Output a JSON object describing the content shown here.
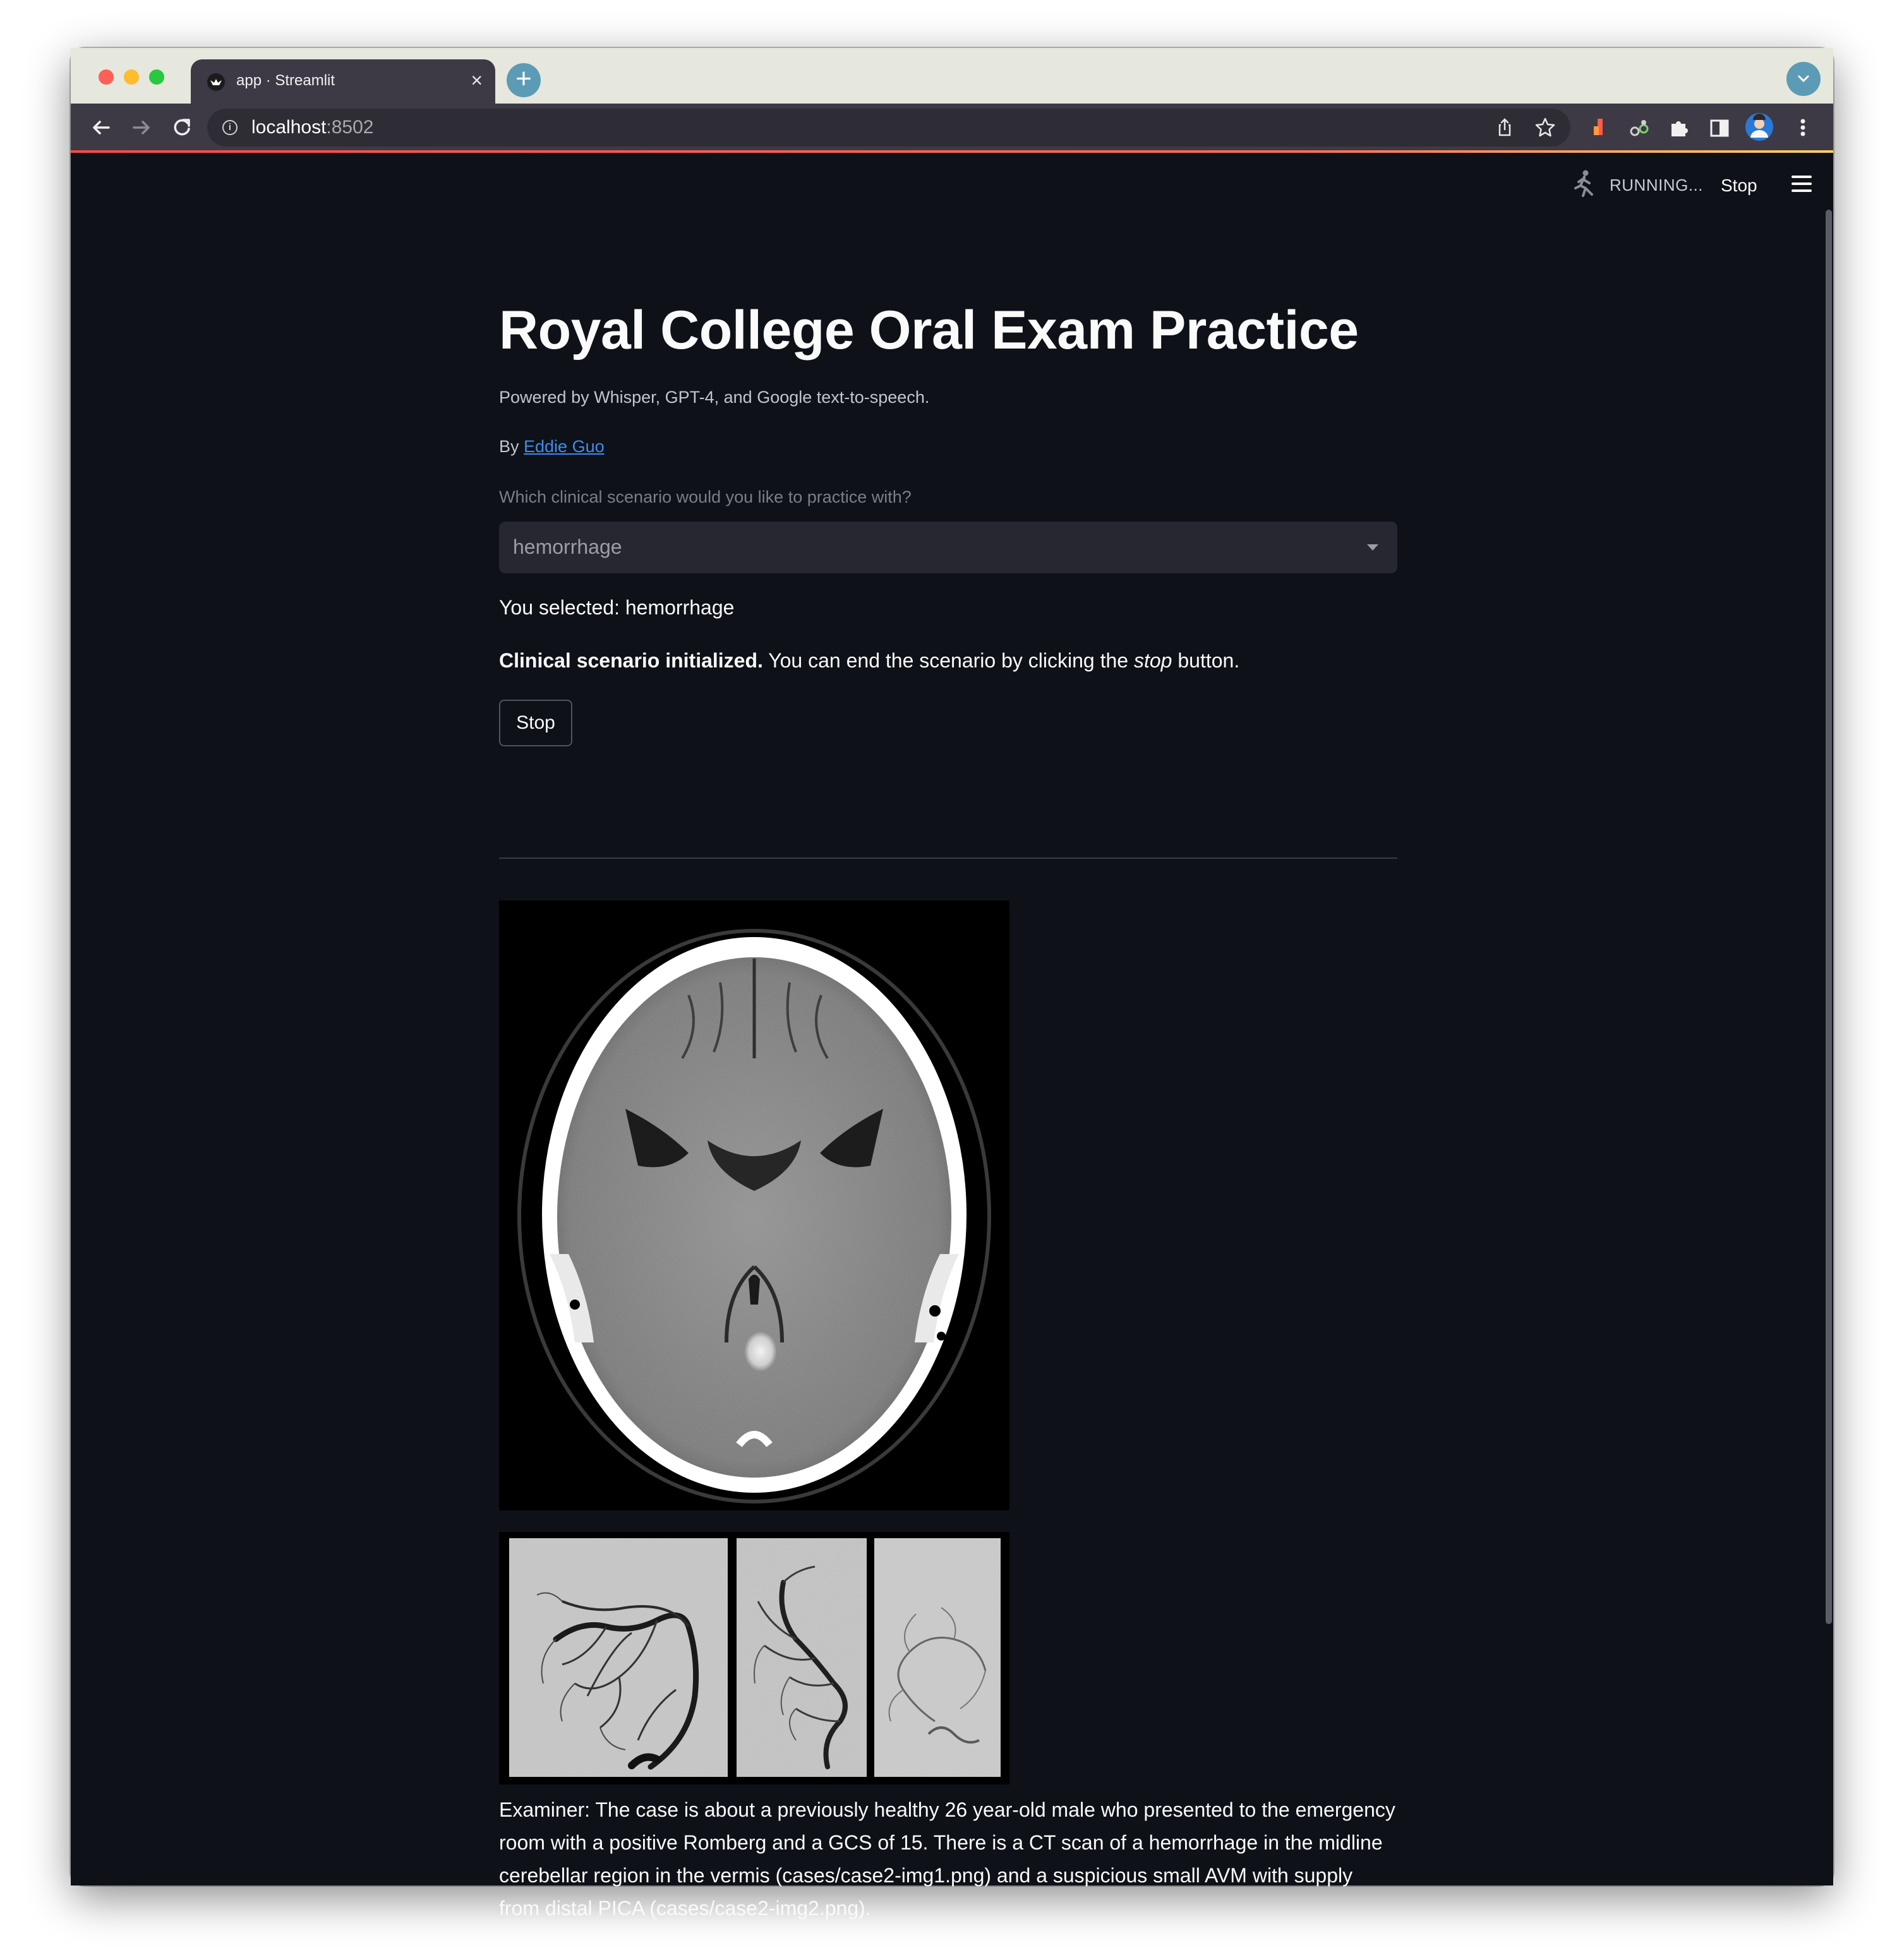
{
  "browser": {
    "tab_title": "app · Streamlit",
    "tab_close": "×",
    "new_tab": "+",
    "url_host": "localhost",
    "url_port": ":8502",
    "info_glyph": "i"
  },
  "streamlit_header": {
    "status": "RUNNING...",
    "stop_label": "Stop"
  },
  "main": {
    "title": "Royal College Oral Exam Practice",
    "subtitle": "Powered by Whisper, GPT-4, and Google text-to-speech.",
    "by_prefix": "By ",
    "author": "Eddie Guo",
    "select_label": "Which clinical scenario would you like to practice with?",
    "select_value": "hemorrhage",
    "selected_text": "You selected: hemorrhage",
    "init_bold": "Clinical scenario initialized.",
    "init_rest_1": " You can end the scenario by clicking the ",
    "init_italic": "stop",
    "init_rest_2": " button.",
    "stop_button": "Stop",
    "examiner_text": "Examiner: The case is about a previously healthy 26 year-old male who presented to the emergency room with a positive Romberg and a GCS of 15. There is a CT scan of a hemorrhage in the midline cerebellar region in the vermis (cases/case2-img1.png) and a suspicious small AVM with supply from distal PICA (cases/case2-img2.png)."
  },
  "colors": {
    "background": "#0e1118",
    "text": "#fafafa",
    "link": "#3d8df0",
    "select_bg": "#262730",
    "tab_bg": "#3d3a45",
    "tabstrip_bg": "#e6e7dd"
  },
  "icons": [
    "back-arrow-icon",
    "forward-arrow-icon",
    "reload-icon",
    "info-icon",
    "share-icon",
    "bookmark-star-icon",
    "extension-icon",
    "puzzle-icon",
    "side-panel-icon",
    "profile-avatar-icon",
    "kebab-menu-icon",
    "streamlit-runner-icon",
    "hamburger-menu-icon",
    "dropdown-caret-icon"
  ]
}
